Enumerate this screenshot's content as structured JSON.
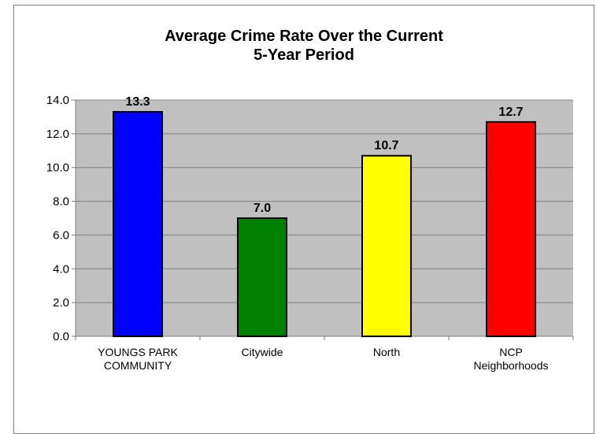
{
  "chart_data": {
    "type": "bar",
    "title_line1": "Average Crime Rate Over the Current",
    "title_line2": "5-Year Period",
    "categories": [
      [
        "YOUNGS PARK",
        "COMMUNITY"
      ],
      [
        "Citywide"
      ],
      [
        "North"
      ],
      [
        "NCP",
        "Neighborhoods"
      ]
    ],
    "values": [
      13.3,
      7.0,
      10.7,
      12.7
    ],
    "data_labels": [
      "13.3",
      "7.0",
      "10.7",
      "12.7"
    ],
    "colors": [
      "#0000ff",
      "#008000",
      "#ffff00",
      "#ff0000"
    ],
    "ylim": [
      0,
      14
    ],
    "yticks": [
      "0.0",
      "2.0",
      "4.0",
      "6.0",
      "8.0",
      "10.0",
      "12.0",
      "14.0"
    ],
    "grid": true,
    "plot_background": "#c0c0c0"
  }
}
